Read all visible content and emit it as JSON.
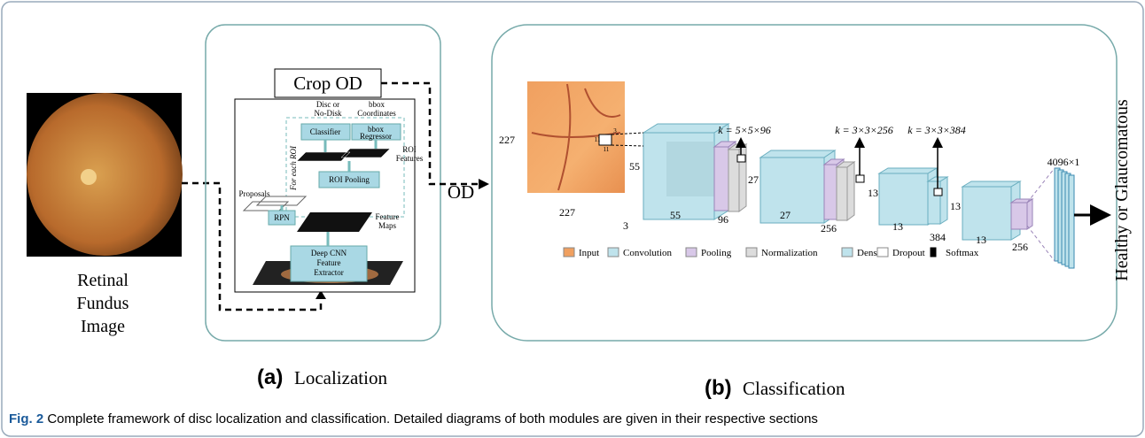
{
  "fundus_label": [
    "Retinal",
    "Fundus",
    "Image"
  ],
  "localization": {
    "crop": "Crop OD",
    "disc_or_nodisk": [
      "Disc or",
      "No-Disk"
    ],
    "bbox_coords": [
      "bbox",
      "Coordinates"
    ],
    "classifier": "Classifier",
    "bbox_regressor": [
      "bbox",
      "Regressor"
    ],
    "for_each_roi": "For each ROI",
    "roi_features": [
      "ROI",
      "Features"
    ],
    "roi_pooling": "ROI Pooling",
    "proposals": "Proposals",
    "rpn": "RPN",
    "feature_maps": [
      "Feature",
      "Maps"
    ],
    "extractor": [
      "Deep CNN",
      "Feature",
      "Extractor"
    ],
    "panel_letter": "(a)",
    "panel_name": "Localization"
  },
  "od": "OD",
  "classification": {
    "dims": [
      "227",
      "227",
      "3",
      "11",
      "11",
      "3",
      "55",
      "55",
      "96",
      "27",
      "27",
      "256",
      "13",
      "13",
      "384",
      "13",
      "13",
      "256"
    ],
    "kernels": [
      "k = 5×5×96",
      "k = 3×3×256",
      "k = 3×3×384"
    ],
    "fc": "4096×1",
    "legend": [
      "Input",
      "Convolution",
      "Pooling",
      "Normalization",
      "Dense",
      "Dropout",
      "Softmax"
    ],
    "output": "Healthy or Glaucomatous",
    "panel_letter": "(b)",
    "panel_name": "Classification"
  },
  "caption": {
    "label": "Fig. 2",
    "text": " Complete framework of disc localization and classification. Detailed diagrams of both modules are given in their respective sections"
  }
}
